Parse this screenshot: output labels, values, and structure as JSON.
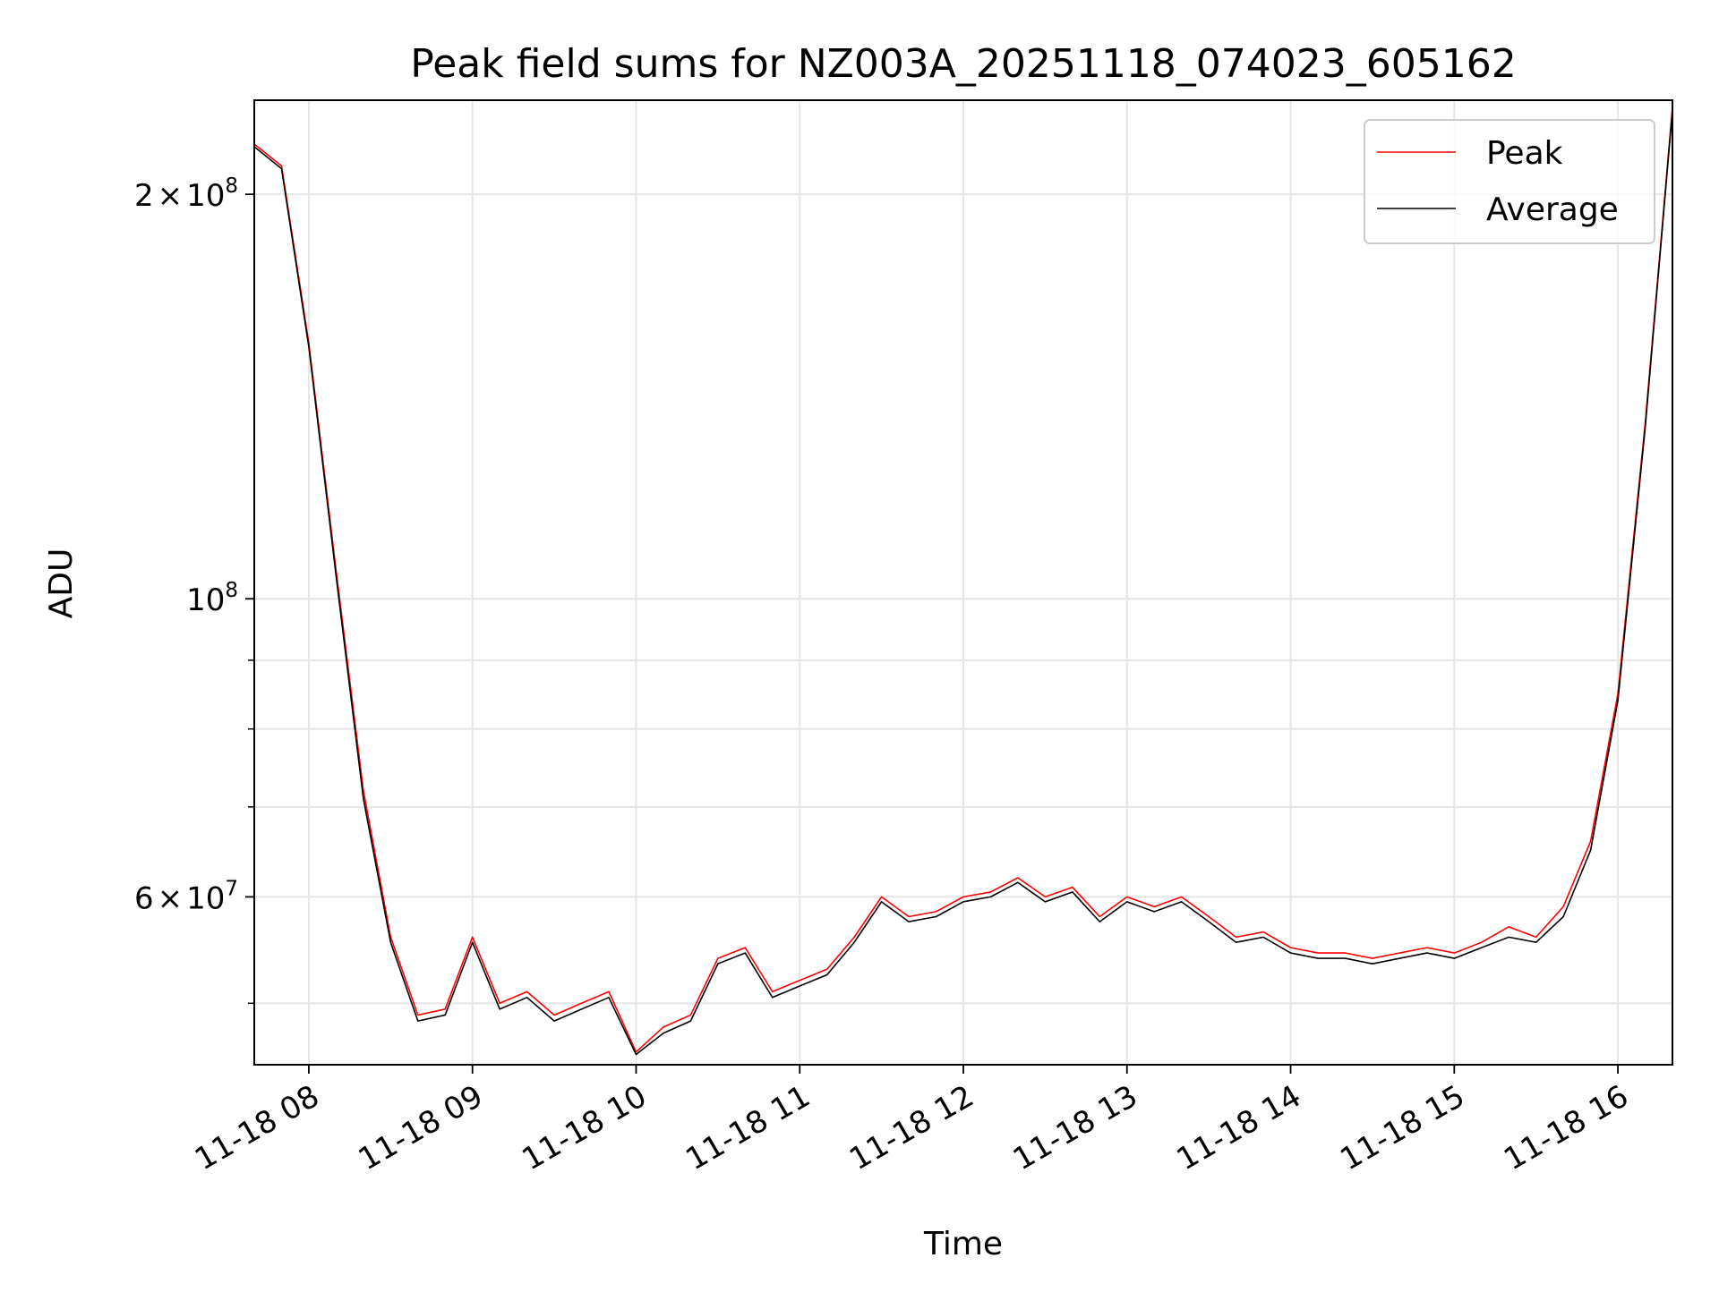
{
  "chart_data": {
    "type": "line",
    "title": "Peak field sums for NZ003A_20251118_074023_605162",
    "xlabel": "Time",
    "ylabel": "ADU",
    "x_range": [
      "2025-11-18 07:40",
      "2025-11-18 16:20"
    ],
    "y_scale": "log",
    "ylim": [
      45000000,
      235000000
    ],
    "grid": true,
    "legend_placement": "top-right",
    "x_ticks": [
      {
        "value": "2025-11-18 08:00",
        "label": "11-18 08"
      },
      {
        "value": "2025-11-18 09:00",
        "label": "11-18 09"
      },
      {
        "value": "2025-11-18 10:00",
        "label": "11-18 10"
      },
      {
        "value": "2025-11-18 11:00",
        "label": "11-18 11"
      },
      {
        "value": "2025-11-18 12:00",
        "label": "11-18 12"
      },
      {
        "value": "2025-11-18 13:00",
        "label": "11-18 13"
      },
      {
        "value": "2025-11-18 14:00",
        "label": "11-18 14"
      },
      {
        "value": "2025-11-18 15:00",
        "label": "11-18 15"
      },
      {
        "value": "2025-11-18 16:00",
        "label": "11-18 16"
      }
    ],
    "y_major_ticks": [
      {
        "value": 60000000,
        "mantissa": "6",
        "times": "×",
        "base": "10",
        "exponent": "7"
      },
      {
        "value": 100000000,
        "mantissa": "",
        "times": "",
        "base": "10",
        "exponent": "8"
      },
      {
        "value": 200000000,
        "mantissa": "2",
        "times": "×",
        "base": "10",
        "exponent": "8"
      }
    ],
    "y_minor_ticks": [
      50000000,
      70000000,
      80000000,
      90000000
    ],
    "series": [
      {
        "name": "Peak",
        "color": "#ff0000",
        "x": [
          "2025-11-18 07:40",
          "2025-11-18 07:50",
          "2025-11-18 08:00",
          "2025-11-18 08:10",
          "2025-11-18 08:20",
          "2025-11-18 08:30",
          "2025-11-18 08:40",
          "2025-11-18 08:50",
          "2025-11-18 09:00",
          "2025-11-18 09:10",
          "2025-11-18 09:20",
          "2025-11-18 09:30",
          "2025-11-18 09:40",
          "2025-11-18 09:50",
          "2025-11-18 10:00",
          "2025-11-18 10:10",
          "2025-11-18 10:20",
          "2025-11-18 10:30",
          "2025-11-18 10:40",
          "2025-11-18 10:50",
          "2025-11-18 11:00",
          "2025-11-18 11:10",
          "2025-11-18 11:20",
          "2025-11-18 11:30",
          "2025-11-18 11:40",
          "2025-11-18 11:50",
          "2025-11-18 12:00",
          "2025-11-18 12:10",
          "2025-11-18 12:20",
          "2025-11-18 12:30",
          "2025-11-18 12:40",
          "2025-11-18 12:50",
          "2025-11-18 13:00",
          "2025-11-18 13:10",
          "2025-11-18 13:20",
          "2025-11-18 13:30",
          "2025-11-18 13:40",
          "2025-11-18 13:50",
          "2025-11-18 14:00",
          "2025-11-18 14:10",
          "2025-11-18 14:20",
          "2025-11-18 14:30",
          "2025-11-18 14:40",
          "2025-11-18 14:50",
          "2025-11-18 15:00",
          "2025-11-18 15:10",
          "2025-11-18 15:20",
          "2025-11-18 15:30",
          "2025-11-18 15:40",
          "2025-11-18 15:50",
          "2025-11-18 16:00",
          "2025-11-18 16:10",
          "2025-11-18 16:20"
        ],
        "values": [
          218000000,
          210000000,
          155000000,
          105000000,
          72000000,
          56000000,
          49000000,
          49500000,
          56000000,
          50000000,
          51000000,
          49000000,
          50000000,
          51000000,
          46000000,
          48000000,
          49000000,
          54000000,
          55000000,
          51000000,
          52000000,
          53000000,
          56000000,
          60000000,
          58000000,
          58500000,
          60000000,
          60500000,
          62000000,
          60000000,
          61000000,
          58000000,
          60000000,
          59000000,
          60000000,
          58000000,
          56000000,
          56500000,
          55000000,
          54500000,
          54500000,
          54000000,
          54500000,
          55000000,
          54500000,
          55500000,
          57000000,
          56000000,
          59000000,
          66000000,
          85000000,
          135000000,
          232000000
        ]
      },
      {
        "name": "Average",
        "color": "#000000",
        "x": [
          "2025-11-18 07:40",
          "2025-11-18 07:50",
          "2025-11-18 08:00",
          "2025-11-18 08:10",
          "2025-11-18 08:20",
          "2025-11-18 08:30",
          "2025-11-18 08:40",
          "2025-11-18 08:50",
          "2025-11-18 09:00",
          "2025-11-18 09:10",
          "2025-11-18 09:20",
          "2025-11-18 09:30",
          "2025-11-18 09:40",
          "2025-11-18 09:50",
          "2025-11-18 10:00",
          "2025-11-18 10:10",
          "2025-11-18 10:20",
          "2025-11-18 10:30",
          "2025-11-18 10:40",
          "2025-11-18 10:50",
          "2025-11-18 11:00",
          "2025-11-18 11:10",
          "2025-11-18 11:20",
          "2025-11-18 11:30",
          "2025-11-18 11:40",
          "2025-11-18 11:50",
          "2025-11-18 12:00",
          "2025-11-18 12:10",
          "2025-11-18 12:20",
          "2025-11-18 12:30",
          "2025-11-18 12:40",
          "2025-11-18 12:50",
          "2025-11-18 13:00",
          "2025-11-18 13:10",
          "2025-11-18 13:20",
          "2025-11-18 13:30",
          "2025-11-18 13:40",
          "2025-11-18 13:50",
          "2025-11-18 14:00",
          "2025-11-18 14:10",
          "2025-11-18 14:20",
          "2025-11-18 14:30",
          "2025-11-18 14:40",
          "2025-11-18 14:50",
          "2025-11-18 15:00",
          "2025-11-18 15:10",
          "2025-11-18 15:20",
          "2025-11-18 15:30",
          "2025-11-18 15:40",
          "2025-11-18 15:50",
          "2025-11-18 16:00",
          "2025-11-18 16:10",
          "2025-11-18 16:20"
        ],
        "values": [
          217000000,
          209000000,
          154000000,
          104000000,
          71000000,
          55500000,
          48500000,
          49000000,
          55500000,
          49500000,
          50500000,
          48500000,
          49500000,
          50500000,
          45800000,
          47500000,
          48500000,
          53500000,
          54500000,
          50500000,
          51500000,
          52500000,
          55500000,
          59500000,
          57500000,
          58000000,
          59500000,
          60000000,
          61500000,
          59500000,
          60500000,
          57500000,
          59500000,
          58500000,
          59500000,
          57500000,
          55500000,
          56000000,
          54500000,
          54000000,
          54000000,
          53500000,
          54000000,
          54500000,
          54000000,
          55000000,
          56000000,
          55500000,
          58000000,
          65000000,
          84000000,
          134000000,
          231000000
        ]
      }
    ]
  }
}
